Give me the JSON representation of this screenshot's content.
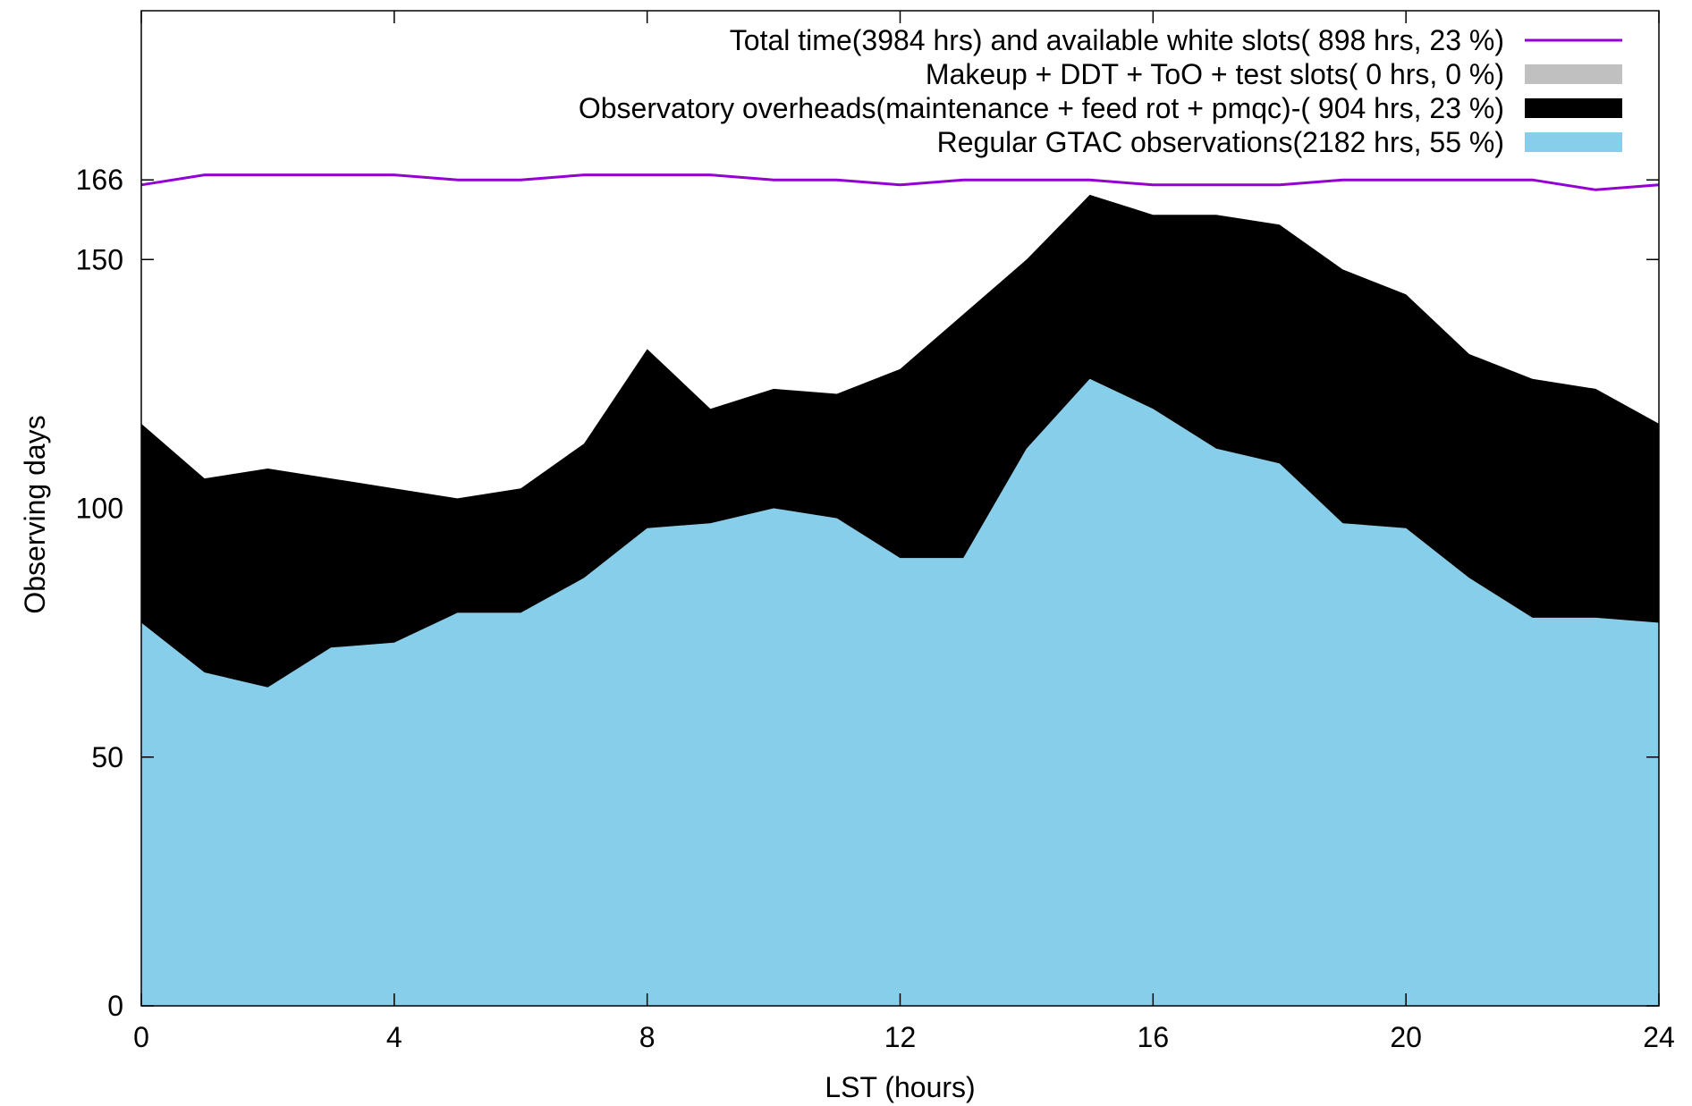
{
  "chart_data": {
    "type": "area",
    "title": "",
    "xlabel": "LST (hours)",
    "ylabel": "Observing days",
    "xlim": [
      0,
      24
    ],
    "ylim": [
      0,
      200
    ],
    "xticks": [
      0,
      4,
      8,
      12,
      16,
      20,
      24
    ],
    "yticks": [
      0,
      50,
      100,
      150,
      166
    ],
    "grid": false,
    "legend_position": "top-right",
    "stacked": true,
    "x": [
      0,
      1,
      2,
      3,
      4,
      5,
      6,
      7,
      8,
      9,
      10,
      11,
      12,
      13,
      14,
      15,
      16,
      17,
      18,
      19,
      20,
      21,
      22,
      23,
      24
    ],
    "series": [
      {
        "name": "Regular GTAC observations(2182 hrs, 55 %)",
        "style": "area",
        "color": "#87ceeb",
        "cumulative_values": [
          77,
          67,
          64,
          72,
          73,
          79,
          79,
          86,
          96,
          97,
          100,
          98,
          90,
          90,
          112,
          126,
          120,
          112,
          109,
          97,
          96,
          86,
          78,
          78,
          77
        ]
      },
      {
        "name": "Observatory overheads(maintenance + feed rot + pmqc)-( 904 hrs, 23 %)",
        "style": "area",
        "color": "#000000",
        "cumulative_values": [
          117,
          106,
          108,
          106,
          104,
          102,
          104,
          113,
          132,
          120,
          124,
          123,
          128,
          139,
          150,
          163,
          159,
          159,
          157,
          148,
          143,
          131,
          126,
          124,
          117
        ]
      },
      {
        "name": "Makeup + DDT + ToO + test slots(   0 hrs,  0 %)",
        "style": "area",
        "color": "#c0c0c0",
        "cumulative_values": [
          117,
          106,
          108,
          106,
          104,
          102,
          104,
          113,
          132,
          120,
          124,
          123,
          128,
          139,
          150,
          163,
          159,
          159,
          157,
          148,
          143,
          131,
          126,
          124,
          117
        ]
      },
      {
        "name": "Total time(3984 hrs) and available white slots( 898 hrs, 23 %)",
        "style": "line",
        "color": "#9400d3",
        "values": [
          165,
          167,
          167,
          167,
          167,
          166,
          166,
          167,
          167,
          167,
          166,
          166,
          165,
          166,
          166,
          166,
          165,
          165,
          165,
          166,
          166,
          166,
          166,
          164,
          165
        ]
      }
    ]
  }
}
